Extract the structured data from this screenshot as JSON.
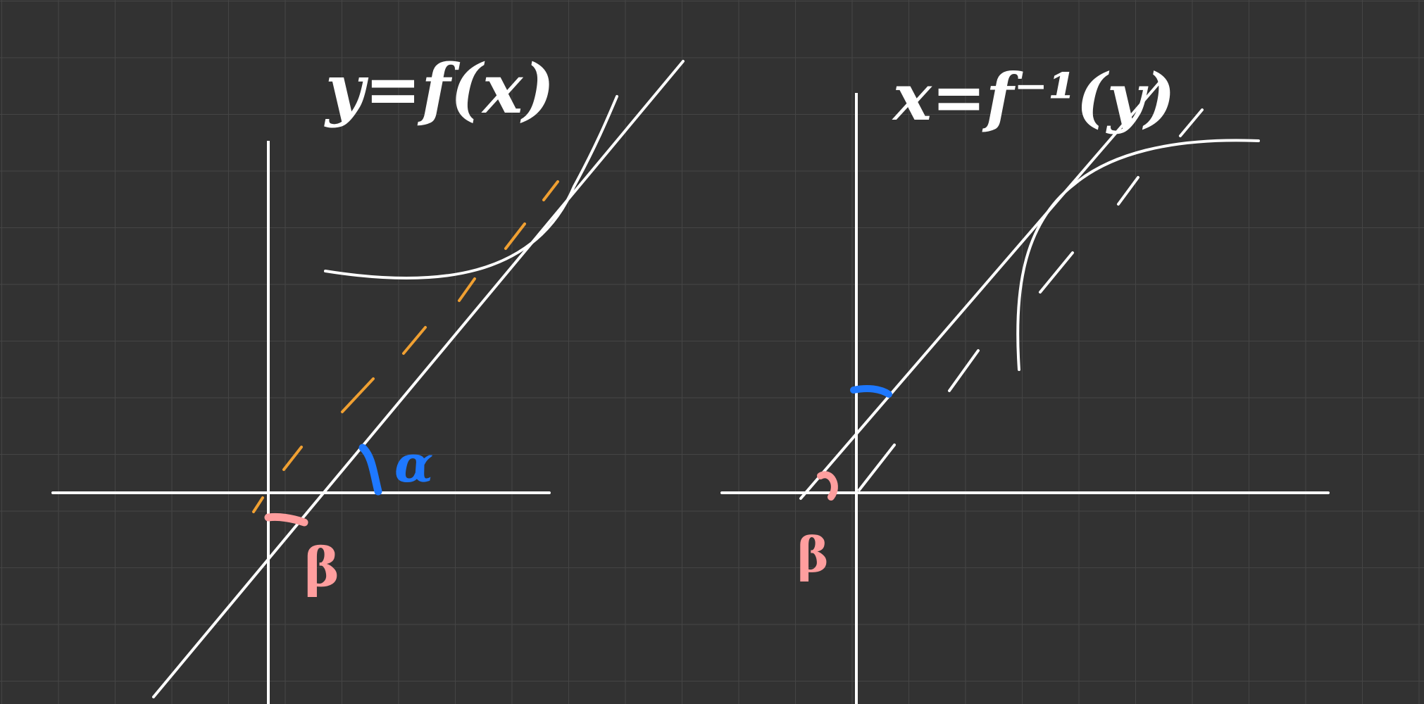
{
  "left_panel": {
    "title": "y=f(x)",
    "angle_alpha_label": "α",
    "angle_beta_label": "β"
  },
  "right_panel": {
    "title": "x=f⁻¹(y)",
    "angle_beta_label": "β"
  },
  "colors": {
    "background": "#323232",
    "grid": "#444444",
    "ink": "#ffffff",
    "tangent_dashed": "#f0a032",
    "angle_alpha": "#1e78ff",
    "angle_beta": "#ff9e9e"
  }
}
